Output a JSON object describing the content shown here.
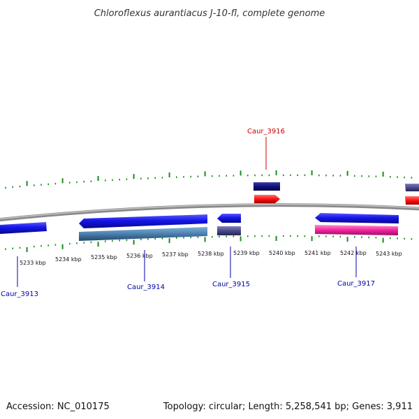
{
  "title": "Chloroflexus aurantiacus J-10-fl, complete genome",
  "footer": {
    "accession": "Accession: NC_010175",
    "summary": "Topology: circular; Length: 5,258,541 bp; Genes: 3,911"
  },
  "colors": {
    "backbone": "#8a8a8a",
    "tick": "#1a8a1a",
    "label_forward": "#cc0000",
    "label_reverse": "#0000aa",
    "gene_blue": "#1515e8",
    "gene_navy": "#10107a",
    "gene_slate": "#4a4a8c",
    "gene_steel": "#4a7fae",
    "gene_red": "#ff1010",
    "gene_pink": "#f0259c"
  },
  "scale_labels": [
    "5233 kbp",
    "5234 kbp",
    "5235 kbp",
    "5236 kbp",
    "5237 kbp",
    "5238 kbp",
    "5239 kbp",
    "5240 kbp",
    "5241 kbp",
    "5242 kbp",
    "5243 kbp"
  ],
  "gene_labels": {
    "caur_3913": "Caur_3913",
    "caur_3914": "Caur_3914",
    "caur_3915": "Caur_3915",
    "caur_3916": "Caur_3916",
    "caur_3917": "Caur_3917"
  }
}
